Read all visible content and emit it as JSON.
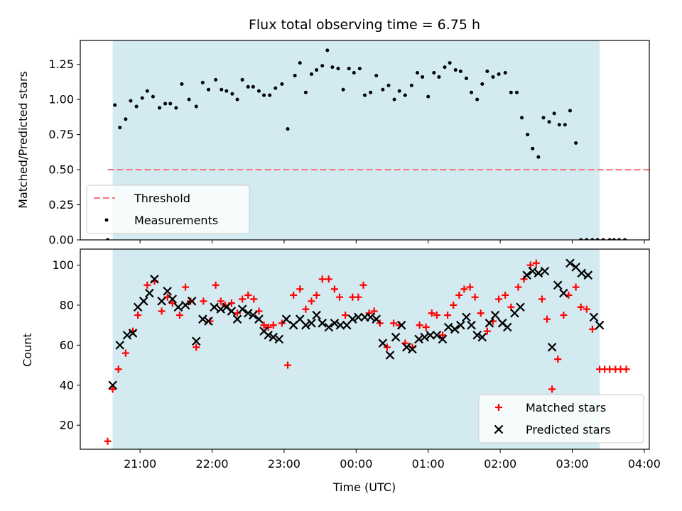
{
  "chart_data": {
    "type": "scatter",
    "title": "Flux total observing time = 6.75 h",
    "xlabel": "Time (UTC)",
    "x_tick_values": [
      21,
      22,
      23,
      24,
      25,
      26,
      27,
      28
    ],
    "x_tick_labels": [
      "21:00",
      "22:00",
      "23:00",
      "00:00",
      "01:00",
      "02:00",
      "03:00",
      "04:00"
    ],
    "xlim": [
      20.17,
      28.07
    ],
    "shaded_region": {
      "x": [
        20.62,
        27.38
      ],
      "color": "#d3eaf0"
    },
    "panels": [
      {
        "ylabel": "Matched/Predicted stars",
        "ylim": [
          0,
          1.42
        ],
        "y_ticks": [
          0,
          0.25,
          0.5,
          0.75,
          1.0,
          1.25
        ],
        "y_tick_labels": [
          "0.00",
          "0.25",
          "0.50",
          "0.75",
          "1.00",
          "1.25"
        ],
        "legend": {
          "position": "lower-left",
          "entries": [
            "Threshold",
            "Measurements"
          ]
        },
        "threshold": {
          "name": "Threshold",
          "x": [
            20.55,
            28.3
          ],
          "y": 0.5,
          "color": "#f07e7e",
          "style": "dashed"
        },
        "series": [
          {
            "name": "Measurements",
            "marker": "dot",
            "color": "#000000",
            "x": [
              20.55,
              20.65,
              20.72,
              20.8,
              20.87,
              20.95,
              21.03,
              21.1,
              21.18,
              21.27,
              21.35,
              21.42,
              21.5,
              21.58,
              21.68,
              21.78,
              21.87,
              21.95,
              22.05,
              22.13,
              22.2,
              22.28,
              22.35,
              22.42,
              22.5,
              22.57,
              22.65,
              22.72,
              22.8,
              22.88,
              22.97,
              23.05,
              23.15,
              23.22,
              23.3,
              23.38,
              23.45,
              23.53,
              23.6,
              23.67,
              23.75,
              23.82,
              23.9,
              23.97,
              24.05,
              24.12,
              24.2,
              24.28,
              24.37,
              24.45,
              24.53,
              24.6,
              24.68,
              24.77,
              24.85,
              24.92,
              25.0,
              25.08,
              25.15,
              25.23,
              25.3,
              25.38,
              25.45,
              25.53,
              25.6,
              25.68,
              25.75,
              25.82,
              25.9,
              25.98,
              26.07,
              26.15,
              26.23,
              26.3,
              26.38,
              26.45,
              26.53,
              26.6,
              26.68,
              26.75,
              26.82,
              26.9,
              26.97,
              27.05,
              27.12,
              27.2,
              27.28,
              27.35,
              27.43,
              27.52,
              27.58,
              27.65,
              27.73
            ],
            "y": [
              0.0,
              0.96,
              0.8,
              0.86,
              0.99,
              0.95,
              1.01,
              1.06,
              1.02,
              0.94,
              0.97,
              0.97,
              0.94,
              1.11,
              1.0,
              0.95,
              1.12,
              1.07,
              1.14,
              1.07,
              1.06,
              1.04,
              1.0,
              1.14,
              1.09,
              1.09,
              1.06,
              1.03,
              1.03,
              1.08,
              1.11,
              0.79,
              1.17,
              1.26,
              1.05,
              1.18,
              1.21,
              1.24,
              1.35,
              1.23,
              1.22,
              1.07,
              1.22,
              1.19,
              1.22,
              1.03,
              1.05,
              1.17,
              1.07,
              1.1,
              1.0,
              1.06,
              1.03,
              1.1,
              1.19,
              1.16,
              1.02,
              1.19,
              1.16,
              1.23,
              1.26,
              1.21,
              1.2,
              1.15,
              1.05,
              1.0,
              1.11,
              1.2,
              1.16,
              1.18,
              1.19,
              1.05,
              1.05,
              0.87,
              0.75,
              0.65,
              0.59,
              0.87,
              0.84,
              0.9,
              0.82,
              0.82,
              0.92,
              0.69,
              0.0,
              0.0,
              0.0,
              0.0,
              0.0,
              0.0,
              0.0,
              0.0,
              0.0
            ]
          }
        ]
      },
      {
        "ylabel": "Count",
        "ylim": [
          8,
          108
        ],
        "y_ticks": [
          20,
          40,
          60,
          80,
          100
        ],
        "y_tick_labels": [
          "20",
          "40",
          "60",
          "80",
          "100"
        ],
        "legend": {
          "position": "lower-right",
          "entries": [
            "Matched stars",
            "Predicted stars"
          ]
        },
        "series": [
          {
            "name": "Matched stars",
            "marker": "plus",
            "color": "#ff0000",
            "x": [
              20.55,
              20.62,
              20.7,
              20.8,
              20.9,
              20.97,
              21.1,
              21.2,
              21.3,
              21.38,
              21.45,
              21.55,
              21.63,
              21.7,
              21.78,
              21.88,
              21.97,
              22.05,
              22.12,
              22.18,
              22.27,
              22.35,
              22.42,
              22.5,
              22.58,
              22.65,
              22.72,
              22.78,
              22.85,
              22.97,
              23.05,
              23.13,
              23.22,
              23.3,
              23.38,
              23.45,
              23.53,
              23.62,
              23.7,
              23.77,
              23.85,
              23.95,
              24.03,
              24.1,
              24.18,
              24.25,
              24.33,
              24.43,
              24.52,
              24.6,
              24.68,
              24.78,
              24.88,
              24.97,
              25.05,
              25.12,
              25.2,
              25.27,
              25.35,
              25.43,
              25.5,
              25.58,
              25.65,
              25.73,
              25.82,
              25.9,
              25.98,
              26.07,
              26.15,
              26.25,
              26.33,
              26.42,
              26.5,
              26.58,
              26.65,
              26.72,
              26.8,
              26.88,
              26.95,
              27.05,
              27.12,
              27.2,
              27.28,
              27.38,
              27.45,
              27.52,
              27.6,
              27.67,
              27.75
            ],
            "y": [
              12,
              38,
              48,
              56,
              67,
              75,
              90,
              92,
              77,
              84,
              81,
              75,
              89,
              82,
              59,
              82,
              72,
              90,
              82,
              80,
              81,
              76,
              83,
              85,
              83,
              77,
              70,
              69,
              70,
              71,
              50,
              85,
              88,
              78,
              82,
              85,
              93,
              93,
              88,
              84,
              75,
              84,
              84,
              90,
              76,
              77,
              71,
              59,
              71,
              70,
              61,
              59,
              70,
              69,
              76,
              75,
              65,
              75,
              80,
              85,
              88,
              89,
              84,
              76,
              67,
              72,
              83,
              85,
              79,
              89,
              93,
              100,
              101,
              83,
              73,
              38,
              53,
              75,
              85,
              89,
              79,
              78,
              68,
              48,
              48,
              48,
              48,
              48,
              48
            ]
          },
          {
            "name": "Predicted stars",
            "marker": "x",
            "color": "#000000",
            "x": [
              20.62,
              20.72,
              20.82,
              20.9,
              20.97,
              21.05,
              21.13,
              21.2,
              21.3,
              21.38,
              21.45,
              21.53,
              21.63,
              21.72,
              21.78,
              21.87,
              21.95,
              22.03,
              22.12,
              22.2,
              22.27,
              22.35,
              22.42,
              22.5,
              22.57,
              22.65,
              22.72,
              22.78,
              22.85,
              22.93,
              23.03,
              23.13,
              23.22,
              23.3,
              23.38,
              23.45,
              23.53,
              23.62,
              23.7,
              23.78,
              23.87,
              23.95,
              24.03,
              24.12,
              24.2,
              24.28,
              24.37,
              24.47,
              24.55,
              24.63,
              24.7,
              24.78,
              24.87,
              24.95,
              25.03,
              25.12,
              25.2,
              25.28,
              25.37,
              25.45,
              25.53,
              25.6,
              25.68,
              25.75,
              25.85,
              25.93,
              26.03,
              26.1,
              26.2,
              26.28,
              26.37,
              26.45,
              26.53,
              26.62,
              26.72,
              26.8,
              26.88,
              26.97,
              27.05,
              27.13,
              27.22,
              27.3,
              27.38
            ],
            "y": [
              40,
              60,
              65,
              66,
              79,
              82,
              86,
              93,
              82,
              87,
              83,
              79,
              80,
              82,
              62,
              73,
              72,
              79,
              78,
              79,
              77,
              73,
              78,
              76,
              75,
              73,
              67,
              65,
              64,
              63,
              73,
              70,
              73,
              70,
              71,
              75,
              71,
              69,
              71,
              70,
              70,
              73,
              74,
              74,
              74,
              73,
              61,
              55,
              64,
              70,
              59,
              58,
              63,
              64,
              65,
              65,
              63,
              69,
              68,
              70,
              74,
              70,
              65,
              64,
              71,
              75,
              71,
              69,
              76,
              79,
              95,
              97,
              96,
              97,
              59,
              90,
              86,
              101,
              99,
              96,
              95,
              74,
              70
            ]
          }
        ]
      }
    ]
  }
}
